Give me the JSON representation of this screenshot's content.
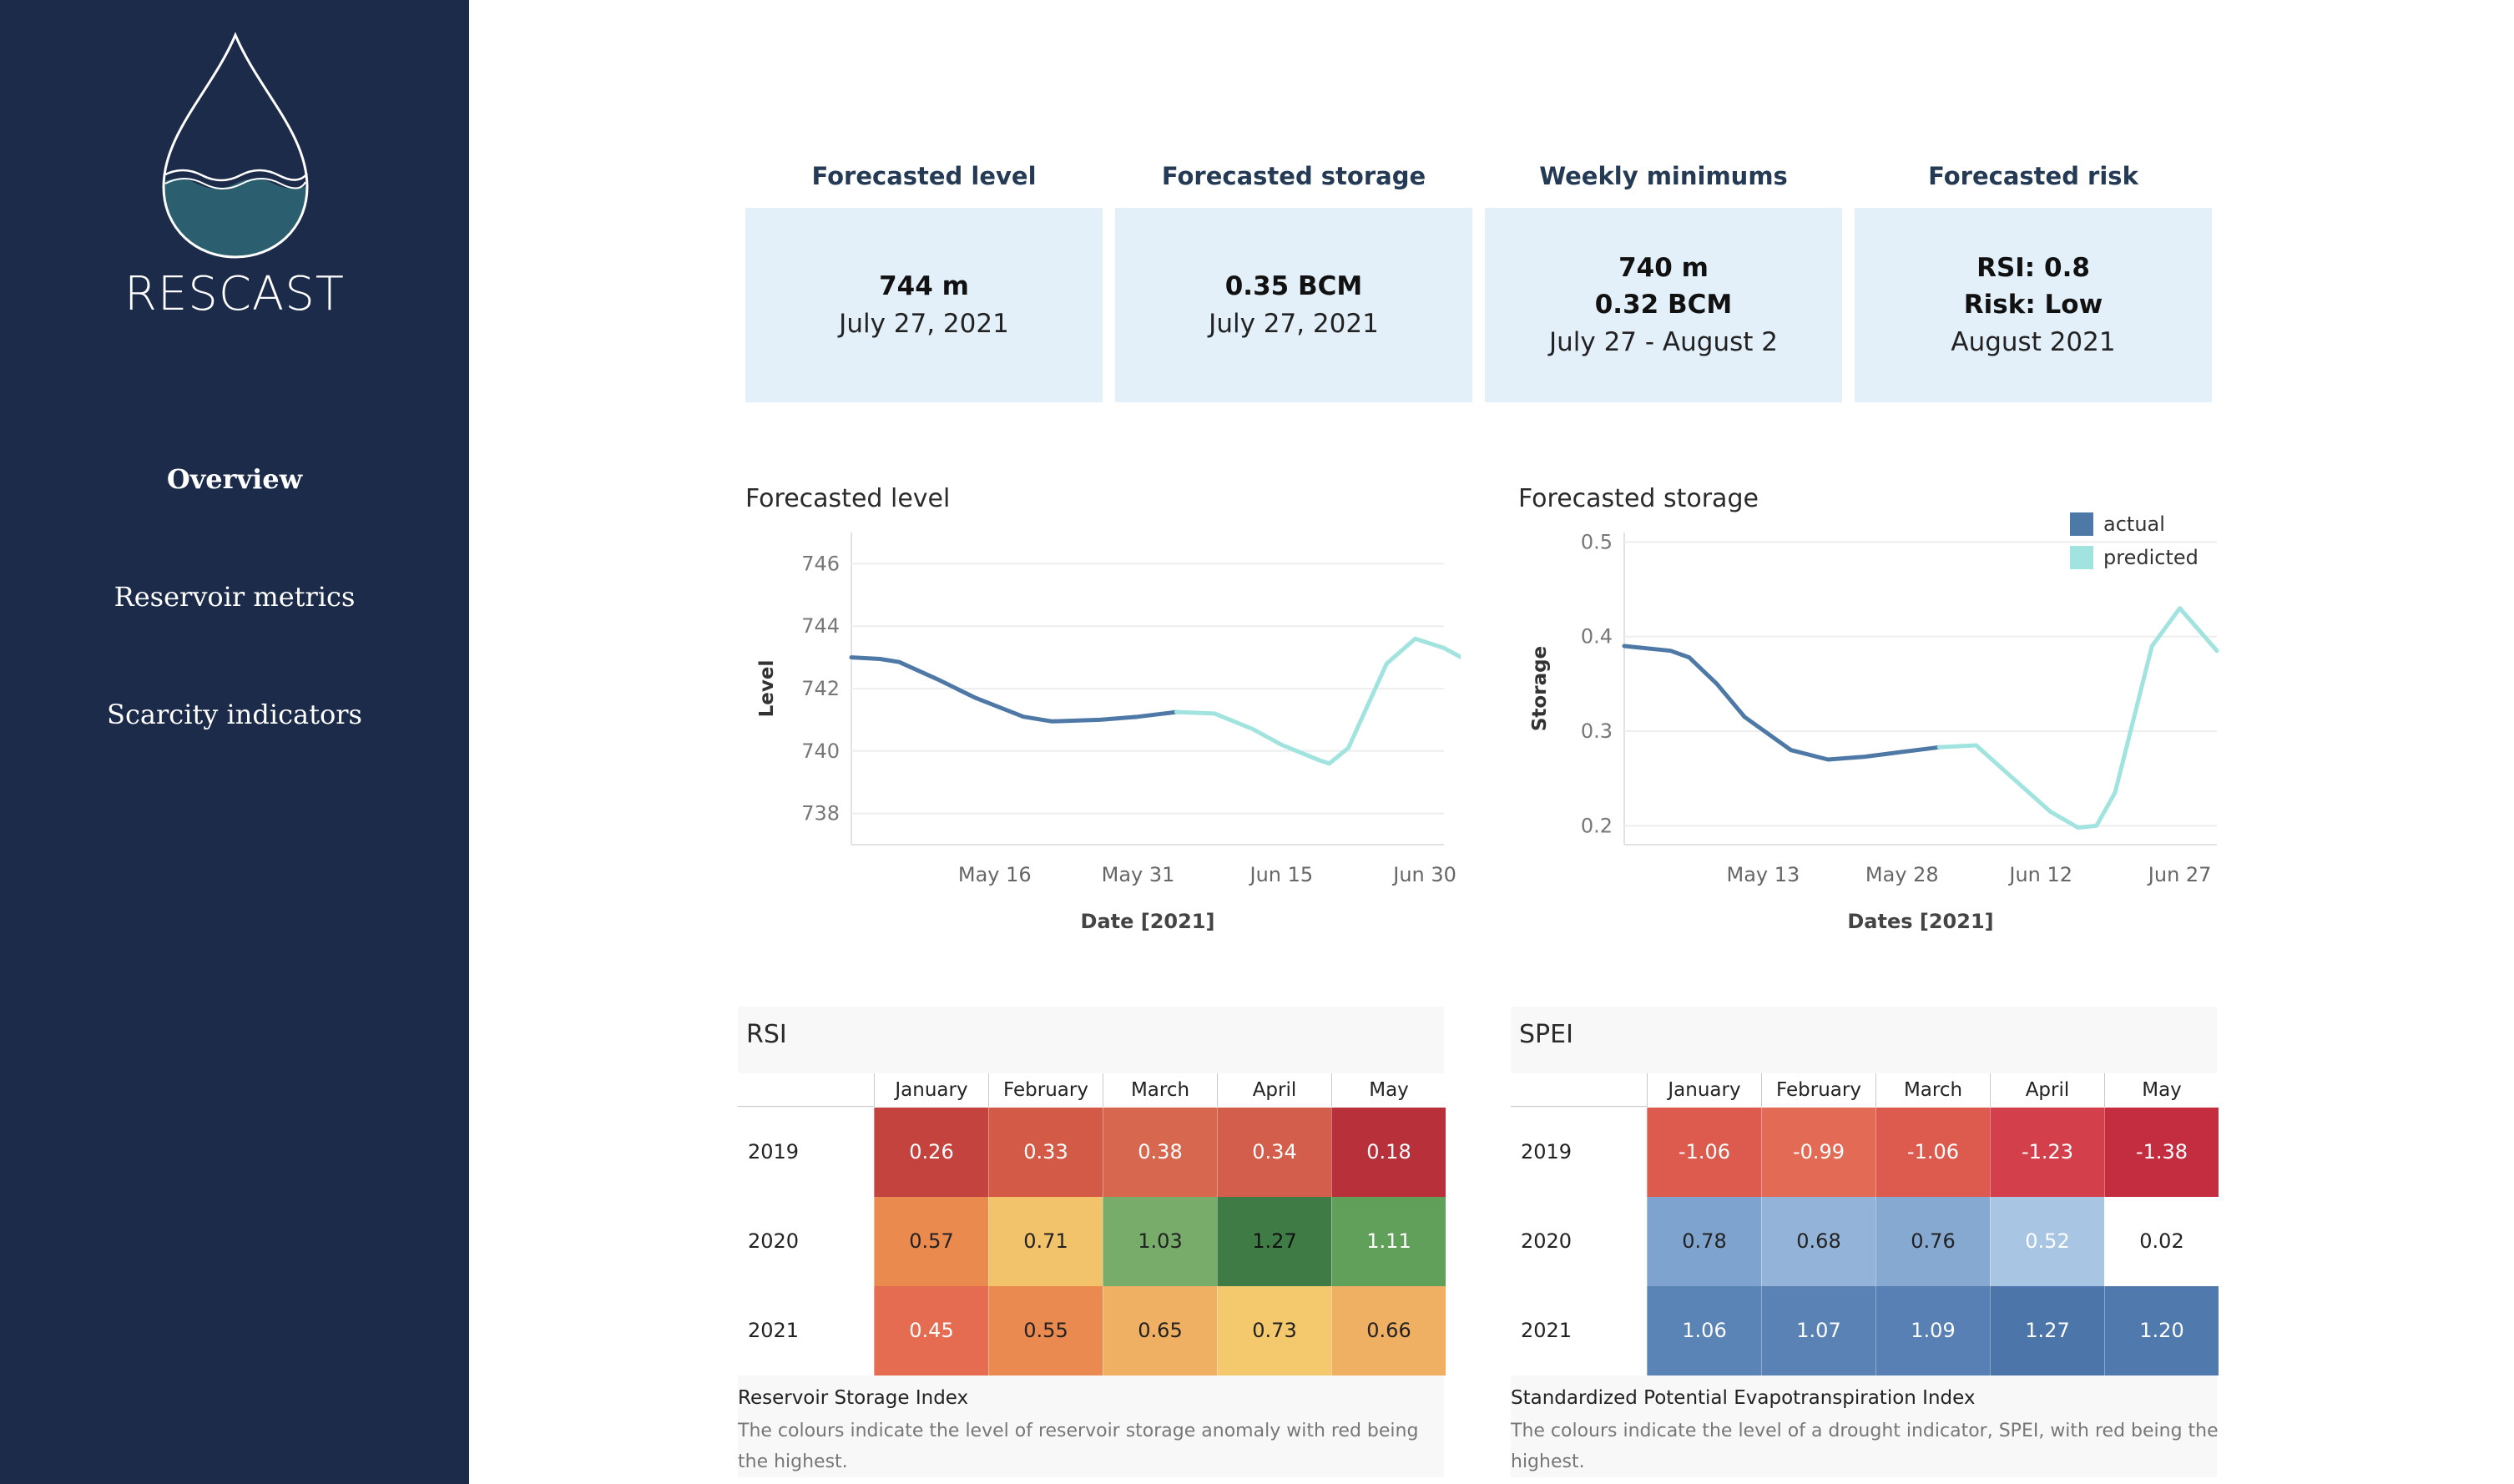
{
  "brand": {
    "name": "RESCAST"
  },
  "nav": [
    {
      "label": "Overview",
      "active": true
    },
    {
      "label": "Reservoir metrics",
      "active": false
    },
    {
      "label": "Scarcity indicators",
      "active": false
    }
  ],
  "kpis": [
    {
      "title": "Forecasted level",
      "bold": [
        "744 m"
      ],
      "normal": "July 27, 2021"
    },
    {
      "title": "Forecasted storage",
      "bold": [
        "0.35 BCM"
      ],
      "normal": "July 27, 2021"
    },
    {
      "title": "Weekly minimums",
      "bold": [
        "740 m",
        "0.32 BCM"
      ],
      "normal": "July 27 - August 2"
    },
    {
      "title": "Forecasted risk",
      "bold": [
        "RSI: 0.8",
        "Risk: Low"
      ],
      "normal": "August 2021"
    }
  ],
  "colors": {
    "sidebar": "#1c2b4a",
    "actual": "#4e79a7",
    "predicted": "#a0e3df",
    "kpi_bg": "#e3f0f9"
  },
  "legend": {
    "actual": "actual",
    "predicted": "predicted"
  },
  "chart_data": [
    {
      "type": "line",
      "title": "Forecasted level",
      "xlabel": "Date [2021]",
      "ylabel": "Level",
      "ylim": [
        737,
        747
      ],
      "yticks": [
        "746",
        "744",
        "742",
        "740",
        "738"
      ],
      "ytick_values": [
        746,
        744,
        742,
        740,
        738
      ],
      "xticks": [
        "May 16",
        "May 31",
        "Jun 15",
        "Jun 30"
      ],
      "xtick_values": [
        "2021-05-16",
        "2021-05-31",
        "2021-06-15",
        "2021-06-30"
      ],
      "x_range": [
        "2021-05-01",
        "2021-07-02"
      ],
      "grid": true,
      "series": [
        {
          "name": "actual",
          "points": [
            [
              "2021-05-01",
              743.0
            ],
            [
              "2021-05-04",
              742.95
            ],
            [
              "2021-05-06",
              742.85
            ],
            [
              "2021-05-10",
              742.3
            ],
            [
              "2021-05-14",
              741.7
            ],
            [
              "2021-05-19",
              741.1
            ],
            [
              "2021-05-22",
              740.95
            ],
            [
              "2021-05-27",
              741.0
            ],
            [
              "2021-05-31",
              741.1
            ],
            [
              "2021-06-04",
              741.25
            ]
          ]
        },
        {
          "name": "predicted",
          "points": [
            [
              "2021-06-04",
              741.25
            ],
            [
              "2021-06-08",
              741.2
            ],
            [
              "2021-06-12",
              740.7
            ],
            [
              "2021-06-15",
              740.2
            ],
            [
              "2021-06-19",
              739.7
            ],
            [
              "2021-06-20",
              739.6
            ],
            [
              "2021-06-22",
              740.1
            ],
            [
              "2021-06-26",
              742.8
            ],
            [
              "2021-06-29",
              743.6
            ],
            [
              "2021-07-02",
              743.3
            ],
            [
              "2021-07-05",
              742.8
            ]
          ]
        }
      ]
    },
    {
      "type": "line",
      "title": "Forecasted storage",
      "xlabel": "Dates [2021]",
      "ylabel": "Storage",
      "ylim": [
        0.18,
        0.51
      ],
      "yticks": [
        "0.5",
        "0.4",
        "0.3",
        "0.2"
      ],
      "ytick_values": [
        0.5,
        0.4,
        0.3,
        0.2
      ],
      "xticks": [
        "May 13",
        "May 28",
        "Jun 12",
        "Jun 27"
      ],
      "xtick_values": [
        "2021-05-13",
        "2021-05-28",
        "2021-06-12",
        "2021-06-27"
      ],
      "x_range": [
        "2021-04-28",
        "2021-07-01"
      ],
      "grid": true,
      "legend": "top-right",
      "series": [
        {
          "name": "actual",
          "points": [
            [
              "2021-04-28",
              0.39
            ],
            [
              "2021-05-03",
              0.385
            ],
            [
              "2021-05-05",
              0.378
            ],
            [
              "2021-05-08",
              0.35
            ],
            [
              "2021-05-11",
              0.315
            ],
            [
              "2021-05-16",
              0.28
            ],
            [
              "2021-05-20",
              0.27
            ],
            [
              "2021-05-24",
              0.273
            ],
            [
              "2021-05-28",
              0.278
            ],
            [
              "2021-06-01",
              0.283
            ]
          ]
        },
        {
          "name": "predicted",
          "points": [
            [
              "2021-06-01",
              0.283
            ],
            [
              "2021-06-05",
              0.285
            ],
            [
              "2021-06-09",
              0.25
            ],
            [
              "2021-06-13",
              0.215
            ],
            [
              "2021-06-16",
              0.198
            ],
            [
              "2021-06-18",
              0.2
            ],
            [
              "2021-06-20",
              0.235
            ],
            [
              "2021-06-24",
              0.39
            ],
            [
              "2021-06-27",
              0.43
            ],
            [
              "2021-07-01",
              0.385
            ]
          ]
        }
      ]
    },
    {
      "type": "heatmap",
      "title": "RSI",
      "columns": [
        "January",
        "February",
        "March",
        "April",
        "May"
      ],
      "rows": [
        "2019",
        "2020",
        "2021"
      ],
      "values": [
        [
          "0.26",
          "0.33",
          "0.38",
          "0.34",
          "0.18"
        ],
        [
          "0.57",
          "0.71",
          "1.03",
          "1.27",
          "1.11"
        ],
        [
          "0.45",
          "0.55",
          "0.65",
          "0.73",
          "0.66"
        ]
      ],
      "caption": "Reservoir Storage Index",
      "note": "The colours indicate the level of reservoir storage anomaly with red being the highest.",
      "cell_colors": [
        [
          "#c4433f",
          "#d25a47",
          "#d86750",
          "#d35e4b",
          "#b7303a"
        ],
        [
          "#ea8a4e",
          "#f2c36a",
          "#78ac6a",
          "#3f7c45",
          "#61a05a"
        ],
        [
          "#e56c50",
          "#ea8a50",
          "#f0b064",
          "#f4c86c",
          "#f0b064"
        ]
      ],
      "text_colors": [
        [
          "#ffffff",
          "#ffffff",
          "#ffffff",
          "#ffffff",
          "#ffffff"
        ],
        [
          "#222222",
          "#222222",
          "#222222",
          "#111111",
          "#ffffff"
        ],
        [
          "#ffffff",
          "#222222",
          "#222222",
          "#222222",
          "#222222"
        ]
      ]
    },
    {
      "type": "heatmap",
      "title": "SPEI",
      "columns": [
        "January",
        "February",
        "March",
        "April",
        "May"
      ],
      "rows": [
        "2019",
        "2020",
        "2021"
      ],
      "values": [
        [
          "-1.06",
          "-0.99",
          "-1.06",
          "-1.23",
          "-1.38"
        ],
        [
          "0.78",
          "0.68",
          "0.76",
          "0.52",
          "0.02"
        ],
        [
          "1.06",
          "1.07",
          "1.09",
          "1.27",
          "1.20"
        ]
      ],
      "caption": "Standardized Potential Evapotranspiration Index",
      "note": "The colours indicate the level of a drought indicator, SPEI, with red being the highest.",
      "cell_colors": [
        [
          "#dd5a4f",
          "#e36b55",
          "#dd5a4f",
          "#d3404b",
          "#c42d3f"
        ],
        [
          "#7ea3cf",
          "#93b4d8",
          "#86a9d2",
          "#a8c5e3",
          "#ffffff"
        ],
        [
          "#5a83b6",
          "#5a82b5",
          "#5880b4",
          "#4c75aa",
          "#5079ae"
        ]
      ],
      "text_colors": [
        [
          "#ffffff",
          "#ffffff",
          "#ffffff",
          "#ffffff",
          "#ffffff"
        ],
        [
          "#222222",
          "#222222",
          "#222222",
          "#ffffff",
          "#222222"
        ],
        [
          "#ffffff",
          "#ffffff",
          "#ffffff",
          "#ffffff",
          "#ffffff"
        ]
      ]
    }
  ]
}
